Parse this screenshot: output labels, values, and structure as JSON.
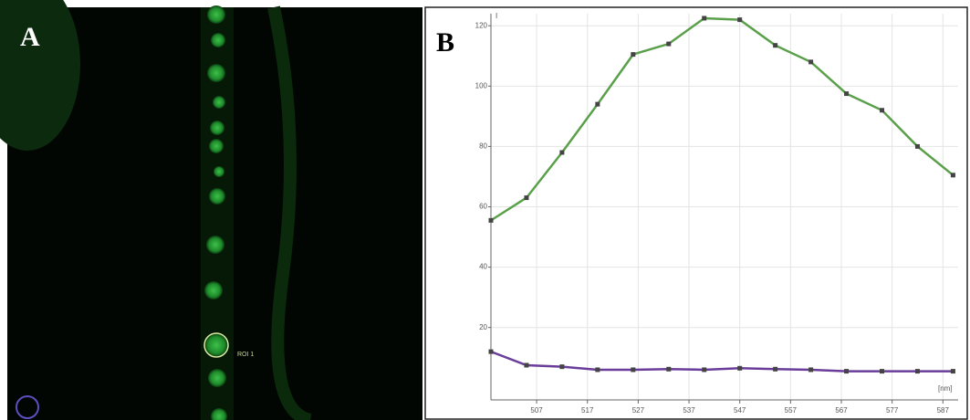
{
  "panels": [
    "A",
    "B"
  ],
  "image_annotation": "ROI 1",
  "chart_data": {
    "type": "line",
    "ylabel": "I",
    "xlabel": "[nm]",
    "x": [
      498,
      505,
      512,
      519,
      526,
      533,
      540,
      547,
      554,
      561,
      568,
      575,
      582,
      589
    ],
    "series": [
      {
        "color": "#5aa04a",
        "values": [
          55.5,
          63,
          78,
          94,
          110.5,
          114,
          122.5,
          122,
          113.5,
          108,
          97.5,
          92,
          80,
          70.5
        ]
      },
      {
        "color": "#6a3d9a",
        "values": [
          12,
          7.5,
          7,
          6,
          6,
          6.2,
          6,
          6.5,
          6.2,
          6,
          5.5,
          5.5,
          5.5,
          5.5
        ]
      }
    ],
    "xlim": [
      498,
      590
    ],
    "ylim": [
      -4,
      124
    ],
    "xticks": [
      507,
      517,
      527,
      537,
      547,
      557,
      567,
      577,
      587
    ],
    "yticks": [
      20,
      40,
      60,
      80,
      100,
      120
    ],
    "grid": true
  }
}
